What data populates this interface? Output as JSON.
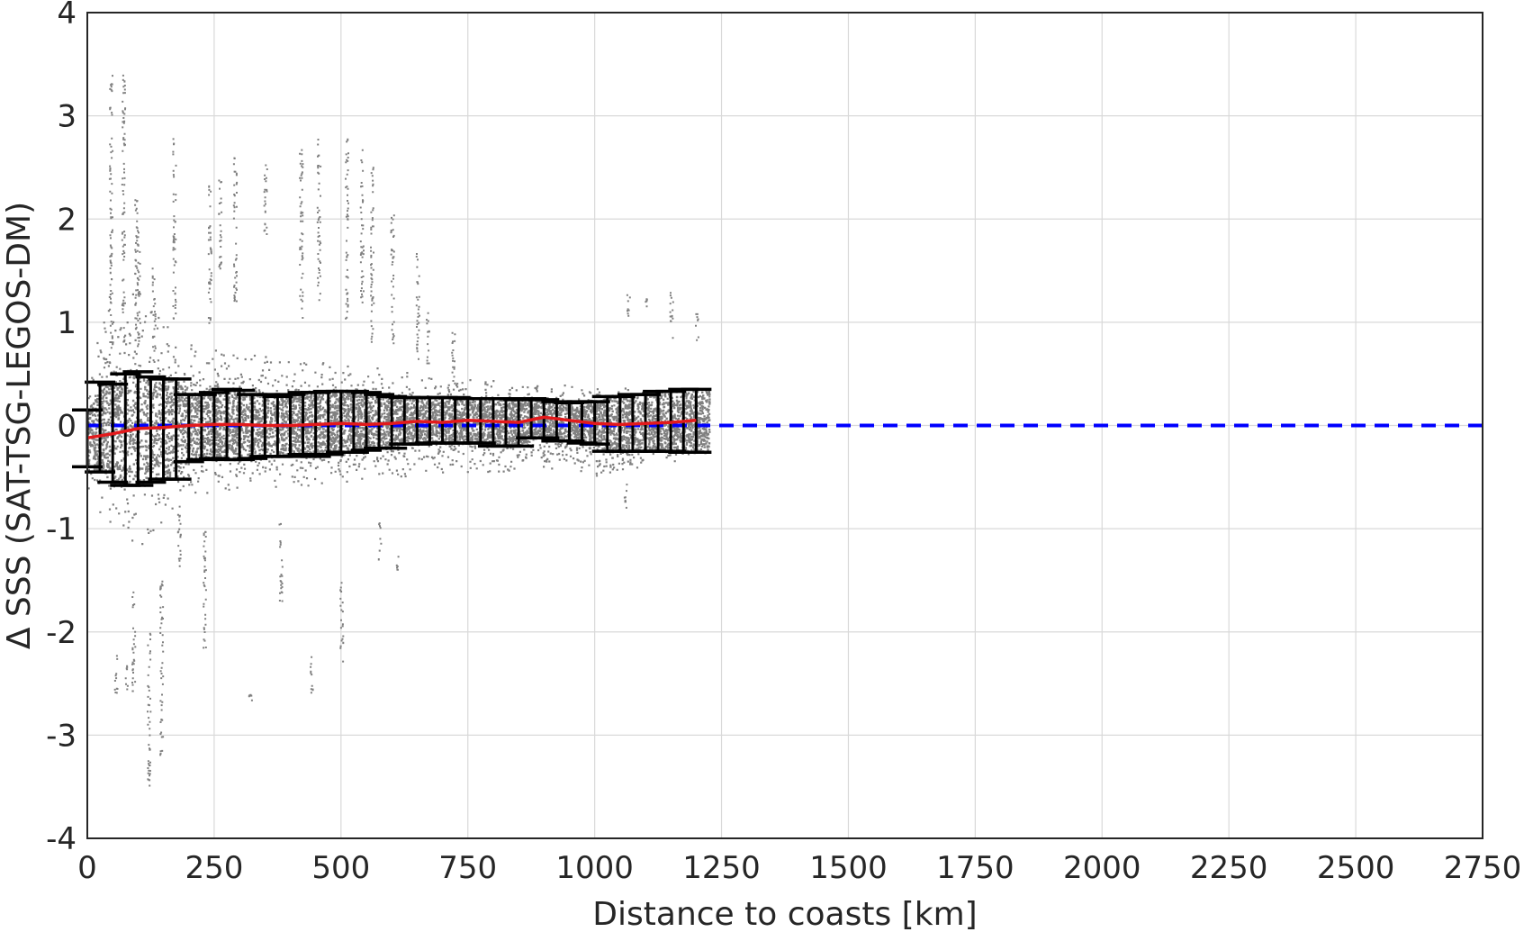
{
  "chart_data": {
    "type": "scatter",
    "title": "",
    "xlabel": "Distance to coasts [km]",
    "ylabel": "Δ SSS (SAT-TSG-LEGOS-DM)",
    "xlim": [
      0,
      2750
    ],
    "ylim": [
      -4,
      4
    ],
    "xticks": [
      "0",
      "250",
      "500",
      "750",
      "1000",
      "1250",
      "1500",
      "1750",
      "2000",
      "2250",
      "2500",
      "2750"
    ],
    "yticks": [
      "4",
      "3",
      "2",
      "1",
      "0",
      "-1",
      "-2",
      "-3",
      "-4"
    ],
    "grid": true,
    "colors": {
      "scatter": "#808080",
      "mean_line": "#e31a1c",
      "error_bars": "#000000",
      "zero_line": "#0000ff",
      "grid": "#d9d9d9"
    },
    "series": [
      {
        "kind": "scatter-density",
        "description_color": "gray",
        "core_envelope": {
          "x": [
            0,
            50,
            100,
            150,
            200,
            300,
            400,
            500,
            600,
            700,
            800,
            900,
            1000,
            1100,
            1200
          ],
          "upper": [
            0.6,
            1.3,
            1.3,
            1.0,
            0.8,
            0.7,
            0.65,
            0.6,
            0.55,
            0.45,
            0.45,
            0.4,
            0.4,
            0.35,
            0.3
          ],
          "lower": [
            -0.6,
            -1.1,
            -1.2,
            -0.9,
            -0.7,
            -0.6,
            -0.6,
            -0.55,
            -0.5,
            -0.45,
            -0.45,
            -0.4,
            -0.5,
            -0.4,
            -0.3
          ]
        },
        "outlier_columns": [
          {
            "x": 45,
            "ymin": 0.5,
            "ymax": 3.4
          },
          {
            "x": 55,
            "ymin": -2.6,
            "ymax": -2.2
          },
          {
            "x": 70,
            "ymin": 0.8,
            "ymax": 3.4
          },
          {
            "x": 75,
            "ymin": -2.6,
            "ymax": -2.3
          },
          {
            "x": 90,
            "ymin": -2.6,
            "ymax": -1.6
          },
          {
            "x": 95,
            "ymin": 0.9,
            "ymax": 2.2
          },
          {
            "x": 100,
            "ymin": 0.5,
            "ymax": 1.9
          },
          {
            "x": 120,
            "ymin": -3.5,
            "ymax": -2.0
          },
          {
            "x": 130,
            "ymin": 0.6,
            "ymax": 1.6
          },
          {
            "x": 145,
            "ymin": -3.2,
            "ymax": -1.5
          },
          {
            "x": 170,
            "ymin": 1.0,
            "ymax": 2.8
          },
          {
            "x": 180,
            "ymin": -1.4,
            "ymax": -0.7
          },
          {
            "x": 230,
            "ymin": -2.2,
            "ymax": -1.0
          },
          {
            "x": 240,
            "ymin": 1.0,
            "ymax": 2.4
          },
          {
            "x": 260,
            "ymin": 1.5,
            "ymax": 2.4
          },
          {
            "x": 290,
            "ymin": 1.2,
            "ymax": 2.7
          },
          {
            "x": 320,
            "ymin": -2.8,
            "ymax": -2.6
          },
          {
            "x": 350,
            "ymin": 1.8,
            "ymax": 2.6
          },
          {
            "x": 380,
            "ymin": -1.7,
            "ymax": -0.9
          },
          {
            "x": 420,
            "ymin": 1.0,
            "ymax": 2.8
          },
          {
            "x": 440,
            "ymin": -2.6,
            "ymax": -2.2
          },
          {
            "x": 455,
            "ymin": 1.2,
            "ymax": 2.8
          },
          {
            "x": 500,
            "ymin": -2.3,
            "ymax": -1.5
          },
          {
            "x": 510,
            "ymin": 1.0,
            "ymax": 2.8
          },
          {
            "x": 540,
            "ymin": 1.2,
            "ymax": 2.7
          },
          {
            "x": 560,
            "ymin": 0.8,
            "ymax": 2.6
          },
          {
            "x": 575,
            "ymin": -1.3,
            "ymax": -0.9
          },
          {
            "x": 600,
            "ymin": 0.8,
            "ymax": 2.1
          },
          {
            "x": 610,
            "ymin": -1.4,
            "ymax": -1.2
          },
          {
            "x": 650,
            "ymin": 0.6,
            "ymax": 1.7
          },
          {
            "x": 670,
            "ymin": 0.6,
            "ymax": 1.1
          },
          {
            "x": 720,
            "ymin": 0.4,
            "ymax": 1.0
          },
          {
            "x": 1060,
            "ymin": -0.8,
            "ymax": -0.5
          },
          {
            "x": 1065,
            "ymin": 1.0,
            "ymax": 1.3
          },
          {
            "x": 1100,
            "ymin": 1.1,
            "ymax": 1.25
          },
          {
            "x": 1150,
            "ymin": 0.8,
            "ymax": 1.3
          },
          {
            "x": 1200,
            "ymin": 0.8,
            "ymax": 1.1
          }
        ]
      },
      {
        "kind": "mean-line",
        "x": [
          0,
          50,
          100,
          150,
          200,
          250,
          300,
          350,
          400,
          450,
          500,
          550,
          600,
          650,
          700,
          750,
          800,
          850,
          900,
          950,
          1000,
          1050,
          1100,
          1150,
          1200
        ],
        "y": [
          -0.12,
          -0.08,
          -0.03,
          -0.02,
          0.0,
          0.01,
          0.01,
          0.0,
          0.0,
          0.01,
          0.02,
          0.01,
          0.02,
          0.04,
          0.03,
          0.05,
          0.04,
          0.03,
          0.08,
          0.05,
          0.02,
          0.01,
          0.02,
          0.03,
          0.05
        ]
      },
      {
        "kind": "error-bars",
        "x": [
          0,
          25,
          50,
          75,
          100,
          125,
          150,
          175,
          200,
          225,
          250,
          275,
          300,
          325,
          350,
          375,
          400,
          425,
          450,
          475,
          500,
          525,
          550,
          575,
          600,
          625,
          650,
          675,
          700,
          725,
          750,
          775,
          800,
          825,
          850,
          875,
          900,
          925,
          950,
          975,
          1000,
          1025,
          1050,
          1075,
          1100,
          1125,
          1150,
          1175,
          1200
        ],
        "upper": [
          0.15,
          0.42,
          0.4,
          0.5,
          0.52,
          0.47,
          0.45,
          0.45,
          0.3,
          0.3,
          0.32,
          0.35,
          0.34,
          0.3,
          0.3,
          0.28,
          0.3,
          0.32,
          0.32,
          0.33,
          0.33,
          0.33,
          0.32,
          0.3,
          0.28,
          0.27,
          0.27,
          0.27,
          0.27,
          0.27,
          0.26,
          0.26,
          0.26,
          0.26,
          0.25,
          0.26,
          0.25,
          0.23,
          0.22,
          0.23,
          0.23,
          0.28,
          0.28,
          0.3,
          0.3,
          0.33,
          0.33,
          0.35,
          0.35
        ],
        "lower": [
          -0.4,
          -0.45,
          -0.55,
          -0.58,
          -0.58,
          -0.55,
          -0.52,
          -0.52,
          -0.35,
          -0.33,
          -0.32,
          -0.33,
          -0.33,
          -0.32,
          -0.3,
          -0.3,
          -0.3,
          -0.28,
          -0.3,
          -0.28,
          -0.26,
          -0.26,
          -0.24,
          -0.22,
          -0.22,
          -0.18,
          -0.18,
          -0.17,
          -0.17,
          -0.17,
          -0.17,
          -0.17,
          -0.2,
          -0.2,
          -0.2,
          -0.12,
          -0.12,
          -0.15,
          -0.15,
          -0.17,
          -0.18,
          -0.25,
          -0.25,
          -0.25,
          -0.25,
          -0.25,
          -0.25,
          -0.26,
          -0.26
        ]
      },
      {
        "kind": "reference-line",
        "y": 0,
        "x_range": [
          0,
          2750
        ]
      }
    ]
  }
}
